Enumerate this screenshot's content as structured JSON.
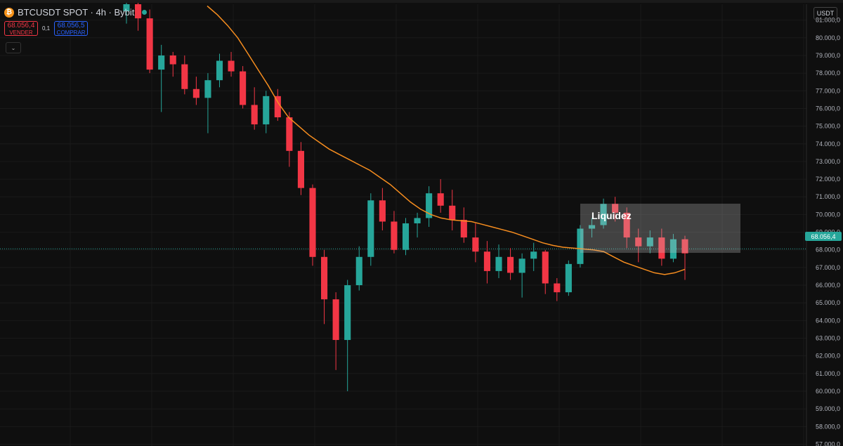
{
  "header": {
    "symbol": "BTCUSDT SPOT · 4h · Bybit",
    "icon": "bitcoin-icon",
    "status_color": "#26a69a"
  },
  "trade": {
    "sell_price": "68.056,4",
    "sell_label": "VENDER",
    "spread": "0,1",
    "buy_price": "68.056,5",
    "buy_label": "COMPRAR"
  },
  "currency": "USDT",
  "current_price_label": "68.056,4",
  "annotation": {
    "label": "Liquidez"
  },
  "colors": {
    "up": "#26a69a",
    "down": "#f23645",
    "ma": "#f68d1f",
    "grid": "#1a1a1a",
    "background": "#0f0f0f"
  },
  "chart_data": {
    "type": "candlestick",
    "y_ticks": [
      "81.000,0",
      "80.000,0",
      "79.000,0",
      "78.000,0",
      "77.000,0",
      "76.000,0",
      "75.000,0",
      "74.000,0",
      "73.000,0",
      "72.000,0",
      "71.000,0",
      "70.000,0",
      "69.000,0",
      "68.000,0",
      "67.000,0",
      "66.000,0",
      "65.000,0",
      "64.000,0",
      "63.000,0",
      "62.000,0",
      "61.000,0",
      "60.000,0",
      "59.000,0",
      "58.000,0",
      "57.000,0"
    ],
    "ylim": [
      56900,
      81900
    ],
    "current_price": 68056.4,
    "liquidity_zone": [
      68200,
      70000
    ],
    "ma_series": [
      81800,
      81300,
      80700,
      80000,
      79100,
      78200,
      77300,
      76300,
      75500,
      75000,
      74500,
      74100,
      73700,
      73400,
      73100,
      72800,
      72500,
      72100,
      71700,
      71200,
      70700,
      70300,
      70000,
      69800,
      69700,
      69650,
      69600,
      69450,
      69300,
      69150,
      69000,
      68800,
      68600,
      68400,
      68250,
      68150,
      68100,
      68050,
      68000,
      67900,
      67600,
      67300,
      67100,
      66900,
      66700,
      66600,
      66700,
      66900
    ],
    "candles": [
      [
        81500,
        82200,
        80800,
        81900
      ],
      [
        81900,
        82000,
        80400,
        81100
      ],
      [
        81100,
        81600,
        78000,
        78200
      ],
      [
        78200,
        79600,
        75800,
        79000
      ],
      [
        79000,
        79200,
        77800,
        78500
      ],
      [
        78500,
        79000,
        76800,
        77100
      ],
      [
        77100,
        77800,
        76200,
        76600
      ],
      [
        76600,
        78000,
        74600,
        77600
      ],
      [
        77600,
        79100,
        77200,
        78700
      ],
      [
        78700,
        79200,
        77800,
        78100
      ],
      [
        78100,
        78400,
        76000,
        76200
      ],
      [
        76200,
        77200,
        74800,
        75100
      ],
      [
        75100,
        77000,
        74600,
        76700
      ],
      [
        76700,
        77100,
        75300,
        75500
      ],
      [
        75500,
        75800,
        72700,
        73600
      ],
      [
        73600,
        74100,
        71100,
        71500
      ],
      [
        71500,
        71700,
        67100,
        67600
      ],
      [
        67600,
        68000,
        63800,
        65200
      ],
      [
        65200,
        65600,
        61200,
        62900
      ],
      [
        62900,
        66300,
        60000,
        66000
      ],
      [
        66000,
        68200,
        65700,
        67600
      ],
      [
        67600,
        71200,
        67100,
        70800
      ],
      [
        70800,
        71500,
        69100,
        69600
      ],
      [
        69600,
        70200,
        67800,
        68000
      ],
      [
        68000,
        69800,
        67700,
        69500
      ],
      [
        69500,
        70100,
        68700,
        69800
      ],
      [
        69800,
        71600,
        69300,
        71200
      ],
      [
        71200,
        72000,
        70100,
        70500
      ],
      [
        70500,
        71400,
        69100,
        69700
      ],
      [
        69700,
        70400,
        68400,
        68700
      ],
      [
        68700,
        69500,
        67300,
        67900
      ],
      [
        67900,
        68500,
        66100,
        66800
      ],
      [
        66800,
        68300,
        66400,
        67600
      ],
      [
        67600,
        68100,
        66300,
        66700
      ],
      [
        66700,
        67800,
        65300,
        67500
      ],
      [
        67500,
        68400,
        66800,
        67900
      ],
      [
        67900,
        68000,
        65500,
        66100
      ],
      [
        66100,
        66400,
        65100,
        65600
      ],
      [
        65600,
        67400,
        65400,
        67200
      ],
      [
        67200,
        69400,
        67000,
        69200
      ],
      [
        69200,
        69800,
        68700,
        69400
      ],
      [
        69400,
        70900,
        69200,
        70600
      ],
      [
        70600,
        71000,
        69600,
        70100
      ],
      [
        70100,
        70400,
        68100,
        68700
      ],
      [
        68700,
        69200,
        67300,
        68200
      ],
      [
        68200,
        69100,
        67800,
        68700
      ],
      [
        68700,
        69200,
        67100,
        67500
      ],
      [
        67500,
        68900,
        67300,
        68600
      ],
      [
        68600,
        68800,
        66300,
        67800
      ]
    ]
  }
}
